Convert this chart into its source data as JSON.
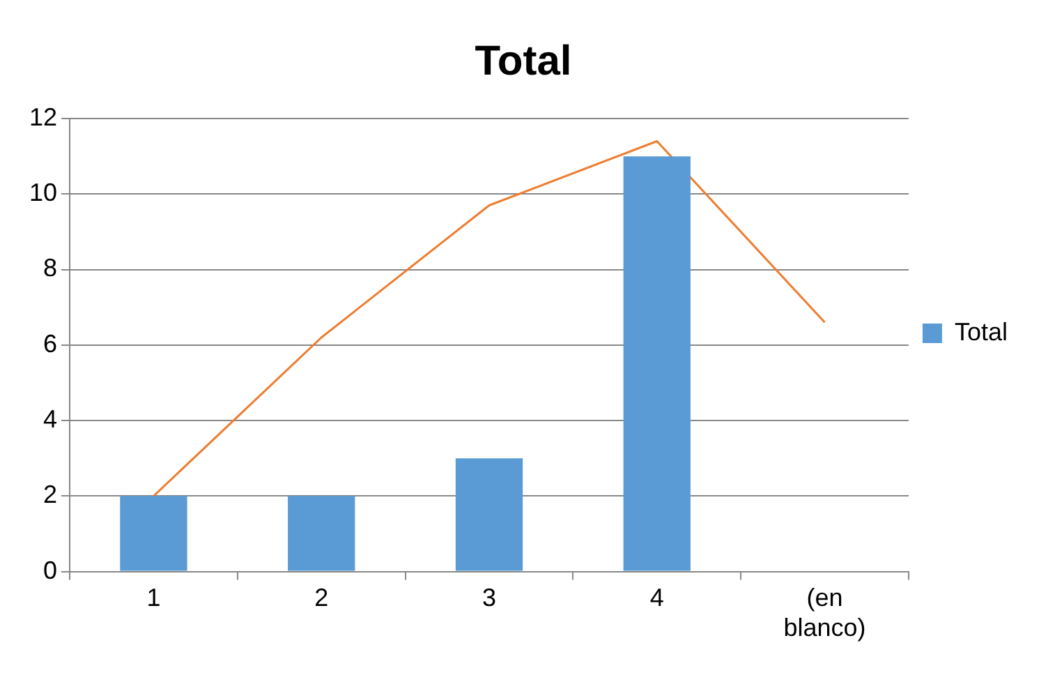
{
  "chart_data": {
    "type": "bar",
    "title": "Total",
    "categories": [
      "1",
      "2",
      "3",
      "4",
      "(en blanco)"
    ],
    "series": [
      {
        "name": "Total",
        "color": "#5b9bd5",
        "values": [
          2,
          2,
          3,
          11,
          null
        ]
      },
      {
        "type": "line",
        "color": "#ed7d31",
        "values": [
          2.0,
          6.2,
          9.7,
          11.4,
          6.6
        ]
      }
    ],
    "ylim": [
      0,
      12
    ],
    "yticks": [
      0,
      2,
      4,
      6,
      8,
      10,
      12
    ],
    "grid": "y",
    "legend": "right",
    "marker": "none"
  }
}
